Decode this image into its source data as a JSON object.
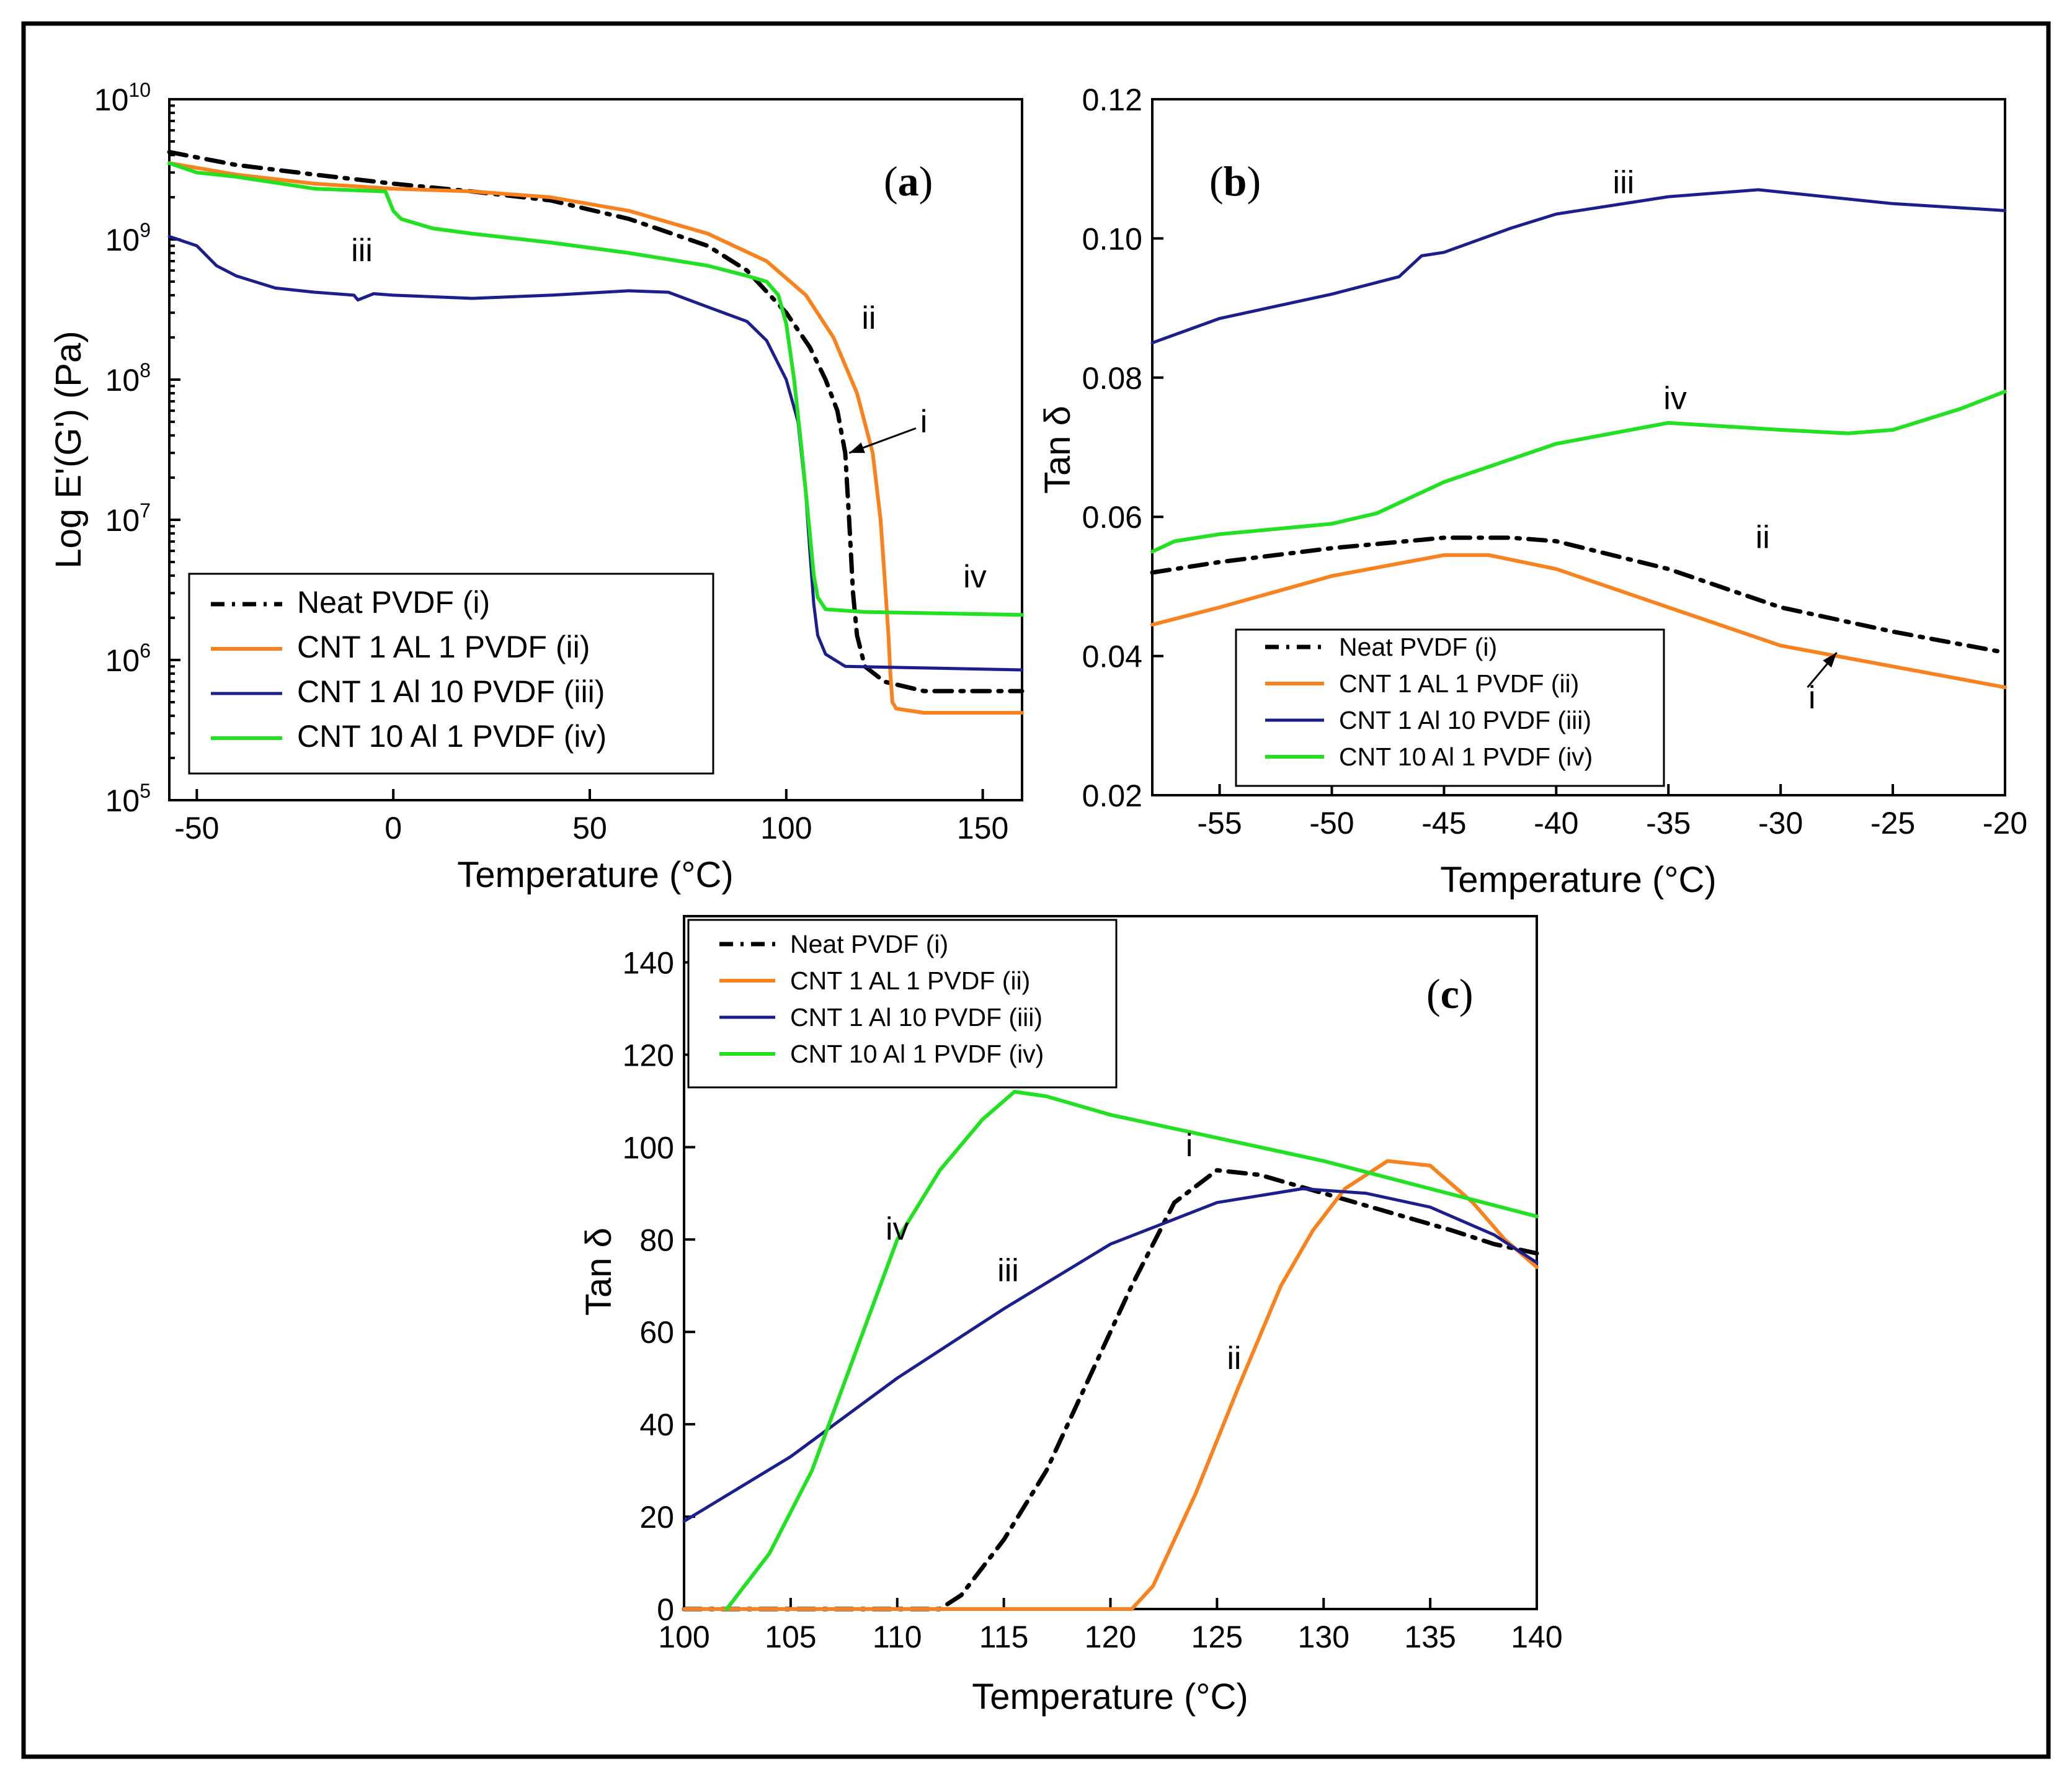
{
  "colors": {
    "neat": "#000000",
    "cnt1al1": "#F7821E",
    "cnt1al10": "#1A1F8C",
    "cnt10al1": "#22E022"
  },
  "legend_entries": [
    {
      "key": "neat",
      "label": "Neat PVDF (i)",
      "dash": true
    },
    {
      "key": "cnt1al1",
      "label": "CNT 1 AL 1 PVDF (ii)",
      "dash": false
    },
    {
      "key": "cnt1al10",
      "label": "CNT 1 Al 10 PVDF (iii)",
      "dash": false
    },
    {
      "key": "cnt10al1",
      "label": "CNT 10 Al 1 PVDF (iv)",
      "dash": false
    }
  ],
  "chart_data": [
    {
      "id": "a",
      "panel_label": "a",
      "type": "line",
      "yscale": "log",
      "xlabel": "Temperature (°C)",
      "ylabel": "Log E'(G') (Pa)",
      "xlim": [
        -57,
        160
      ],
      "ylim_exp": [
        5,
        10
      ],
      "xticks": [
        -50,
        0,
        50,
        100,
        150
      ],
      "ytick_exps": [
        5,
        6,
        7,
        8,
        9,
        10
      ],
      "legend_position": "bottom-left",
      "curve_labels": [
        {
          "text": "iii",
          "x": -8,
          "y": 700000000.0
        },
        {
          "text": "ii",
          "x": 121,
          "y": 230000000.0
        },
        {
          "text": "i",
          "x": 135,
          "y": 42000000.0
        },
        {
          "text": "iv",
          "x": 148,
          "y": 3300000.0
        }
      ],
      "arrows": [
        {
          "from": [
            133,
            45000000.0
          ],
          "to": [
            116,
            30000000.0
          ]
        }
      ],
      "series": [
        {
          "key": "neat",
          "name": "Neat PVDF (i)",
          "x": [
            -57,
            -40,
            -20,
            0,
            20,
            40,
            60,
            80,
            90,
            100,
            106,
            110,
            113,
            115,
            116,
            117,
            118,
            120,
            125,
            135,
            160
          ],
          "y": [
            4200000000.0,
            3400000000.0,
            2900000000.0,
            2500000000.0,
            2200000000.0,
            1900000000.0,
            1400000000.0,
            900000000.0,
            600000000.0,
            300000000.0,
            170000000.0,
            100000000.0,
            60000000.0,
            30000000.0,
            10000000.0,
            3000000.0,
            1500000.0,
            900000.0,
            700000.0,
            600000.0,
            600000.0
          ]
        },
        {
          "key": "cnt1al1",
          "name": "CNT 1 AL 1 PVDF (ii)",
          "x": [
            -57,
            -40,
            -20,
            0,
            20,
            40,
            60,
            80,
            95,
            105,
            112,
            118,
            122,
            124,
            125,
            126,
            126.5,
            127,
            128,
            135,
            160
          ],
          "y": [
            3500000000.0,
            2900000000.0,
            2500000000.0,
            2300000000.0,
            2200000000.0,
            2000000000.0,
            1600000000.0,
            1100000000.0,
            700000000.0,
            400000000.0,
            200000000.0,
            80000000.0,
            30000000.0,
            10000000.0,
            4000000.0,
            1500000.0,
            800000.0,
            500000.0,
            450000.0,
            420000.0,
            420000.0
          ]
        },
        {
          "key": "cnt1al10",
          "name": "CNT 1 Al 10 PVDF (iii)",
          "x": [
            -57,
            -50,
            -45,
            -40,
            -30,
            -20,
            -10,
            -9,
            -5,
            0,
            20,
            40,
            60,
            70,
            80,
            90,
            95,
            100,
            103,
            105,
            106,
            107,
            108,
            110,
            115,
            160
          ],
          "y": [
            1050000000.0,
            900000000.0,
            650000000.0,
            550000000.0,
            450000000.0,
            420000000.0,
            400000000.0,
            370000000.0,
            410000000.0,
            400000000.0,
            380000000.0,
            400000000.0,
            430000000.0,
            420000000.0,
            330000000.0,
            260000000.0,
            190000000.0,
            100000000.0,
            50000000.0,
            15000000.0,
            6000000.0,
            2500000.0,
            1500000.0,
            1100000.0,
            900000.0,
            850000.0
          ]
        },
        {
          "key": "cnt10al1",
          "name": "CNT 10 Al 1 PVDF (iv)",
          "x": [
            -57,
            -50,
            -40,
            -20,
            -2,
            0,
            2,
            10,
            20,
            40,
            60,
            80,
            90,
            95,
            98,
            100,
            102,
            104,
            106,
            107,
            108,
            110,
            120,
            160
          ],
          "y": [
            3500000000.0,
            3000000000.0,
            2800000000.0,
            2300000000.0,
            2200000000.0,
            1600000000.0,
            1400000000.0,
            1200000000.0,
            1100000000.0,
            950000000.0,
            800000000.0,
            650000000.0,
            550000000.0,
            500000000.0,
            400000000.0,
            250000000.0,
            100000000.0,
            30000000.0,
            8000000.0,
            4000000.0,
            2800000.0,
            2300000.0,
            2200000.0,
            2100000.0
          ]
        }
      ]
    },
    {
      "id": "b",
      "panel_label": "b",
      "type": "line",
      "yscale": "linear",
      "xlabel": "Temperature (°C)",
      "ylabel": "Tan δ",
      "xlim": [
        -58,
        -20
      ],
      "ylim": [
        0.02,
        0.12
      ],
      "xticks": [
        -55,
        -50,
        -45,
        -40,
        -35,
        -30,
        -25,
        -20
      ],
      "yticks": [
        0.02,
        0.04,
        0.06,
        0.08,
        0.1,
        0.12
      ],
      "ytick_labels": [
        "0.02",
        "0.04",
        "0.06",
        "0.08",
        "0.10",
        "0.12"
      ],
      "legend_position": "bottom-left",
      "curve_labels": [
        {
          "text": "iii",
          "x": -37,
          "y": 0.1065
        },
        {
          "text": "iv",
          "x": -34.7,
          "y": 0.0755
        },
        {
          "text": "ii",
          "x": -30.8,
          "y": 0.0555
        },
        {
          "text": "i",
          "x": -28.6,
          "y": 0.0325
        }
      ],
      "arrows": [
        {
          "from": [
            -28.8,
            0.0355
          ],
          "to": [
            -27.5,
            0.0405
          ]
        }
      ],
      "series": [
        {
          "key": "neat",
          "name": "Neat PVDF (i)",
          "x": [
            -58,
            -55,
            -50,
            -45,
            -42,
            -40,
            -35,
            -30,
            -25,
            -20
          ],
          "y": [
            0.052,
            0.0535,
            0.0555,
            0.057,
            0.057,
            0.0565,
            0.0525,
            0.047,
            0.0435,
            0.0405
          ]
        },
        {
          "key": "cnt1al1",
          "name": "CNT 1 AL 1 PVDF (ii)",
          "x": [
            -58,
            -55,
            -50,
            -45,
            -43,
            -40,
            -35,
            -30,
            -25,
            -20
          ],
          "y": [
            0.0445,
            0.047,
            0.0515,
            0.0545,
            0.0545,
            0.0525,
            0.047,
            0.0415,
            0.0385,
            0.0355
          ]
        },
        {
          "key": "cnt1al10",
          "name": "CNT 1 Al 10 PVDF (iii)",
          "x": [
            -58,
            -55,
            -50,
            -47,
            -46,
            -45,
            -42,
            -40,
            -35,
            -31,
            -28,
            -25,
            -20
          ],
          "y": [
            0.085,
            0.0885,
            0.092,
            0.0945,
            0.0975,
            0.098,
            0.1015,
            0.1035,
            0.106,
            0.107,
            0.106,
            0.105,
            0.104
          ]
        },
        {
          "key": "cnt10al1",
          "name": "CNT 10 Al 1 PVDF (iv)",
          "x": [
            -58,
            -57,
            -55,
            -50,
            -48,
            -45,
            -40,
            -35,
            -30,
            -27,
            -25,
            -22,
            -20
          ],
          "y": [
            0.055,
            0.0565,
            0.0575,
            0.059,
            0.0605,
            0.065,
            0.0705,
            0.0735,
            0.0725,
            0.072,
            0.0725,
            0.0755,
            0.078
          ]
        }
      ]
    },
    {
      "id": "c",
      "panel_label": "c",
      "type": "line",
      "yscale": "linear",
      "xlabel": "Temperature (°C)",
      "ylabel": "Tan δ",
      "xlim": [
        100,
        140
      ],
      "ylim": [
        0,
        150
      ],
      "xticks": [
        100,
        105,
        110,
        115,
        120,
        125,
        130,
        135,
        140
      ],
      "yticks": [
        0,
        20,
        40,
        60,
        80,
        100,
        120,
        140
      ],
      "ytick_labels": [
        "0",
        "20",
        "40",
        "60",
        "80",
        "100",
        "120",
        "140"
      ],
      "legend_position": "top-left",
      "curve_labels": [
        {
          "text": "iv",
          "x": 110,
          "y": 80
        },
        {
          "text": "iii",
          "x": 115.2,
          "y": 71
        },
        {
          "text": "i",
          "x": 123.7,
          "y": 98
        },
        {
          "text": "ii",
          "x": 125.8,
          "y": 52
        }
      ],
      "arrows": [],
      "series": [
        {
          "key": "neat",
          "name": "Neat PVDF (i)",
          "x": [
            100,
            107,
            112,
            113,
            115,
            117,
            119,
            121,
            123,
            125,
            127,
            130,
            133,
            136,
            138,
            140
          ],
          "y": [
            0,
            0,
            0,
            3,
            15,
            30,
            50,
            70,
            88,
            95,
            94,
            90,
            86,
            82,
            79,
            77
          ]
        },
        {
          "key": "cnt1al1",
          "name": "CNT 1 AL 1 PVDF (ii)",
          "x": [
            100,
            116,
            121,
            122,
            124,
            126,
            128,
            129.5,
            131,
            133,
            135,
            137,
            138.5,
            140
          ],
          "y": [
            0,
            0,
            0,
            5,
            25,
            48,
            70,
            82,
            91,
            97,
            96,
            88,
            80,
            74
          ]
        },
        {
          "key": "cnt1al10",
          "name": "CNT 1 Al 10 PVDF (iii)",
          "x": [
            100,
            105,
            110,
            115,
            120,
            125,
            129,
            132,
            135,
            138,
            140
          ],
          "y": [
            19,
            33,
            50,
            65,
            79,
            88,
            91,
            90,
            87,
            81,
            75
          ]
        },
        {
          "key": "cnt10al1",
          "name": "CNT 10 Al 1 PVDF (iv)",
          "x": [
            102,
            102.5,
            104,
            106,
            108,
            110,
            112,
            114,
            115.5,
            117,
            120,
            125,
            130,
            135,
            140
          ],
          "y": [
            0,
            3,
            12,
            30,
            55,
            80,
            95,
            106,
            112,
            111,
            107,
            102,
            97,
            91,
            85
          ]
        }
      ]
    }
  ]
}
